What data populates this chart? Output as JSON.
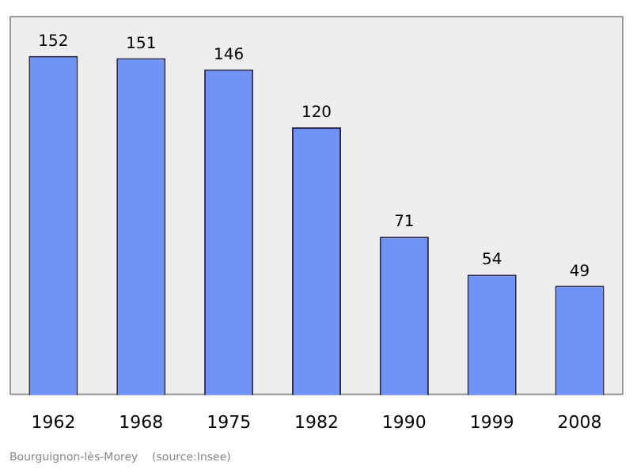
{
  "chart_data": {
    "type": "bar",
    "categories": [
      "1962",
      "1968",
      "1975",
      "1982",
      "1990",
      "1999",
      "2008"
    ],
    "values": [
      152,
      151,
      146,
      120,
      71,
      54,
      49
    ],
    "color": "#7092f7",
    "ylim": [
      0,
      170
    ],
    "tick_labels": "x",
    "data_labels": true,
    "grid": false,
    "legend": false,
    "annotations": [
      "Bourguignon-lès-Morey    (source:Insee)"
    ]
  }
}
